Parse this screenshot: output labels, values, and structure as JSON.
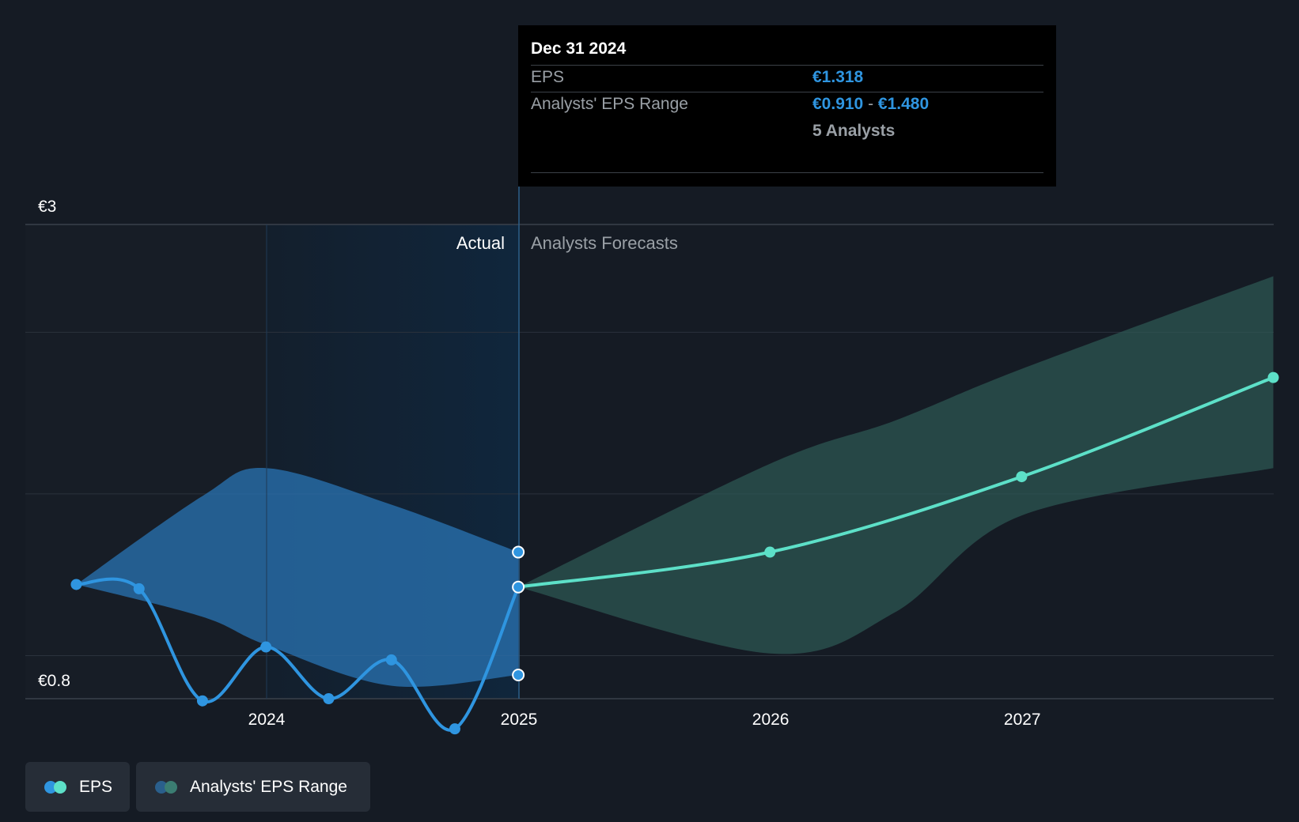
{
  "chart_data": {
    "type": "line",
    "title": "",
    "xlabel": "",
    "ylabel": "",
    "y_axis": {
      "min": 0.8,
      "max": 3.0,
      "tick_labels": [
        "€3",
        "€0.8"
      ]
    },
    "x_ticks": [
      "2024",
      "2025",
      "2026",
      "2027"
    ],
    "section_labels": {
      "actual": "Actual",
      "forecast": "Analysts Forecasts"
    },
    "series": [
      {
        "name": "EPS",
        "kind": "actual",
        "color": "#2f95e0",
        "points": [
          {
            "x": "2023-03-31",
            "y": 1.33
          },
          {
            "x": "2023-06-30",
            "y": 1.31
          },
          {
            "x": "2023-09-30",
            "y": 0.79
          },
          {
            "x": "2023-12-31",
            "y": 1.04
          },
          {
            "x": "2024-03-31",
            "y": 0.8
          },
          {
            "x": "2024-06-30",
            "y": 0.98
          },
          {
            "x": "2024-09-30",
            "y": 0.66
          },
          {
            "x": "2024-12-31",
            "y": 1.318
          }
        ]
      },
      {
        "name": "EPS",
        "kind": "forecast",
        "color": "#5de0c8",
        "points": [
          {
            "x": "2024-12-31",
            "y": 1.318
          },
          {
            "x": "2025-12-31",
            "y": 1.48
          },
          {
            "x": "2026-12-31",
            "y": 1.83
          },
          {
            "x": "2027-12-31",
            "y": 2.29
          }
        ]
      }
    ],
    "ranges": [
      {
        "name": "Analysts' EPS Range",
        "kind": "actual",
        "color": "#2a74b4",
        "points": [
          {
            "x": "2023-03-31",
            "low": 1.33,
            "high": 1.33
          },
          {
            "x": "2023-09-30",
            "low": 1.18,
            "high": 1.74
          },
          {
            "x": "2023-12-31",
            "low": 1.05,
            "high": 1.87
          },
          {
            "x": "2024-06-30",
            "low": 0.86,
            "high": 1.7
          },
          {
            "x": "2024-12-31",
            "low": 0.91,
            "high": 1.48
          }
        ]
      },
      {
        "name": "Analysts' EPS Range",
        "kind": "forecast",
        "color": "#2d5a56",
        "points": [
          {
            "x": "2024-12-31",
            "low": 1.318,
            "high": 1.318
          },
          {
            "x": "2025-12-31",
            "low": 1.01,
            "high": 1.89
          },
          {
            "x": "2026-06-30",
            "low": 1.2,
            "high": 2.09
          },
          {
            "x": "2026-12-31",
            "low": 1.65,
            "high": 2.33
          },
          {
            "x": "2027-12-31",
            "low": 1.87,
            "high": 2.76
          }
        ]
      }
    ],
    "grid": true,
    "legend_position": "bottom-left"
  },
  "tooltip": {
    "date": "Dec 31 2024",
    "eps_label": "EPS",
    "eps_value": "€1.318",
    "range_label": "Analysts' EPS Range",
    "range_low": "€0.910",
    "range_sep": "-",
    "range_high": "€1.480",
    "analysts": "5 Analysts"
  },
  "legend": {
    "eps_label": "EPS",
    "range_label": "Analysts' EPS Range"
  },
  "colors": {
    "background": "#151b24",
    "actual_band": "#0f2a42",
    "grid": "#2b323c",
    "eps_actual": "#2f95e0",
    "eps_forecast": "#5de0c8",
    "range_actual": "#2a74b4",
    "range_forecast": "#2d5a56"
  }
}
